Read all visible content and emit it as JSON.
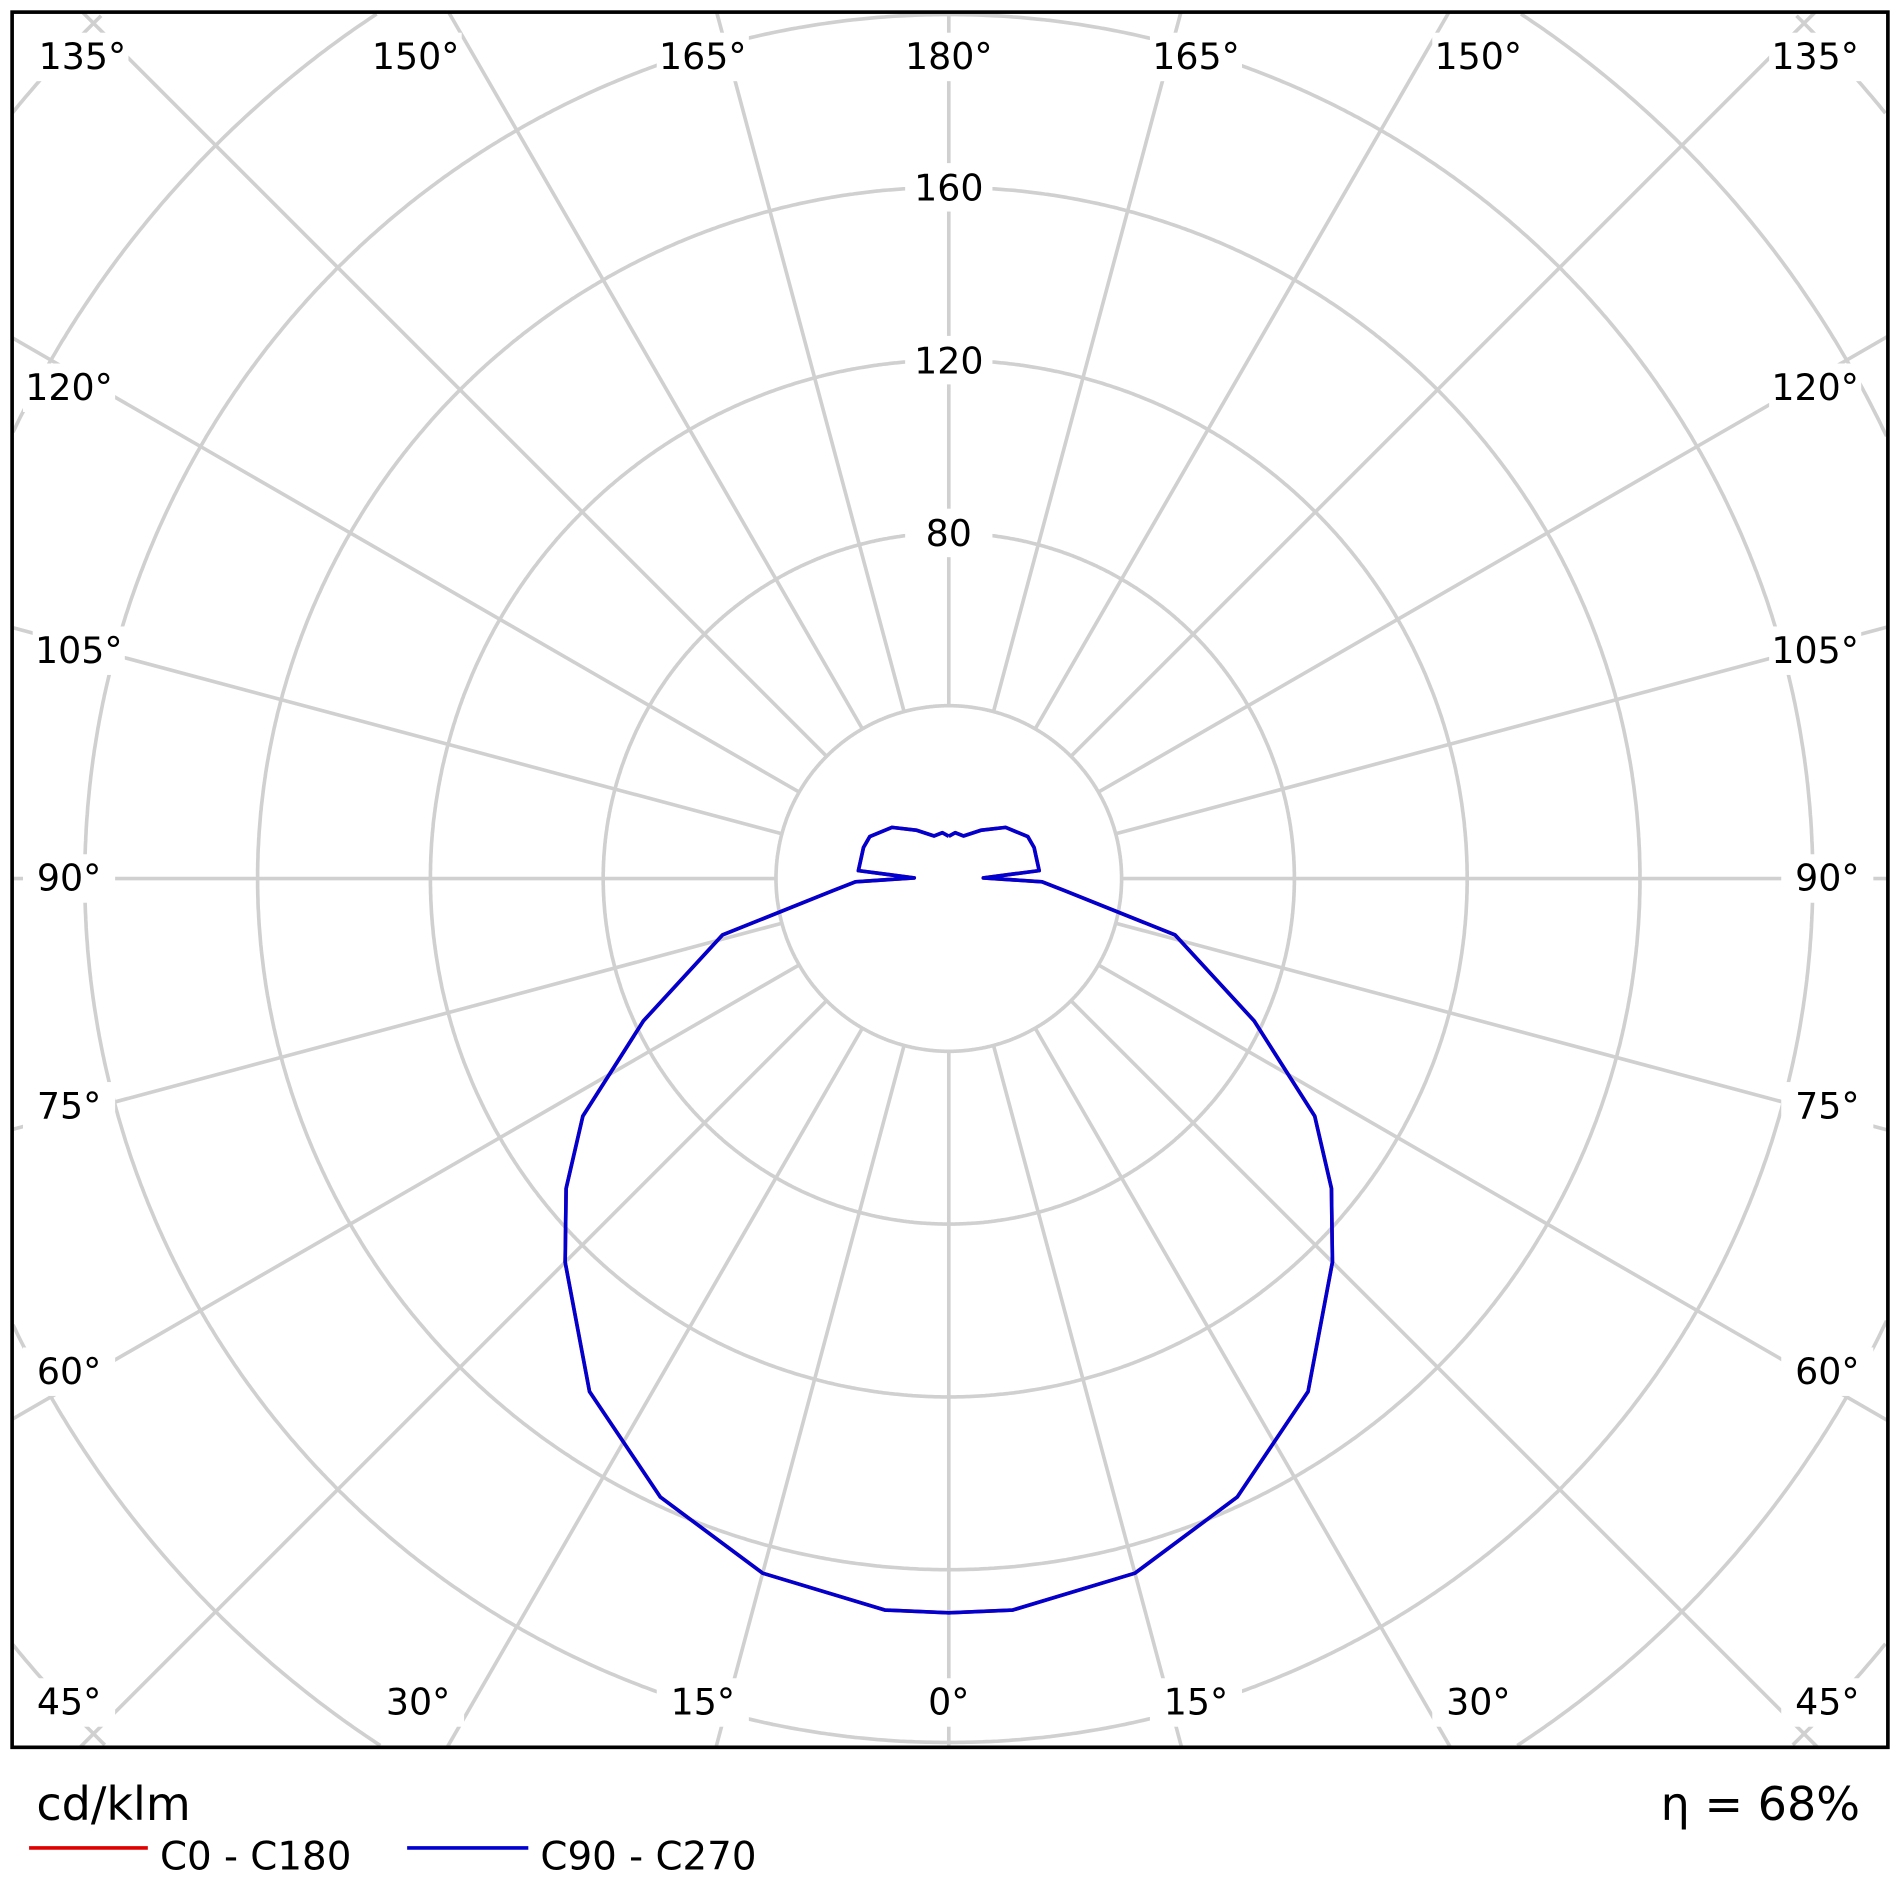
{
  "chart_data": {
    "type": "polar-line",
    "unit_label": "cd/klm",
    "efficiency_label": "η = 68%",
    "radial_ticks": [
      80,
      120,
      160
    ],
    "radial_grid": [
      40,
      80,
      120,
      160,
      200,
      240,
      280
    ],
    "angle_labels": {
      "top": [
        "135°",
        "150°",
        "165°",
        "180°",
        "165°",
        "150°",
        "135°"
      ],
      "left": [
        "120°",
        "105°",
        "90°",
        "75°",
        "60°"
      ],
      "right": [
        "120°",
        "105°",
        "90°",
        "75°",
        "60°"
      ],
      "bottom": [
        "45°",
        "30°",
        "15°",
        "0°",
        "15°",
        "30°",
        "45°"
      ]
    },
    "grid": true,
    "legend_position": "bottom-left",
    "series": [
      {
        "name": "C0 - C180",
        "color": "#e00000",
        "angles": [
          0,
          5,
          15,
          25,
          35,
          45,
          51,
          57,
          65,
          76,
          84,
          88,
          91,
          95,
          110,
          118,
          132,
          146,
          161,
          172,
          180
        ],
        "values": [
          170,
          170,
          166.5,
          158,
          145,
          125.6,
          114,
          101,
          78,
          54,
          27,
          21.6,
          8,
          21,
          21,
          20.7,
          17.7,
          13.5,
          10.4,
          10.7,
          9.8
        ]
      },
      {
        "name": "C90 - C270",
        "color": "#0000d0",
        "angles": [
          0,
          5,
          15,
          25,
          35,
          45,
          51,
          57,
          65,
          76,
          84,
          88,
          91,
          95,
          110,
          118,
          132,
          146,
          161,
          172,
          180
        ],
        "values": [
          170,
          170,
          166.5,
          158,
          145,
          125.6,
          114,
          101,
          78,
          54,
          27,
          21.6,
          8,
          21,
          21,
          20.7,
          17.7,
          13.5,
          10.4,
          10.7,
          9.8
        ]
      }
    ]
  }
}
